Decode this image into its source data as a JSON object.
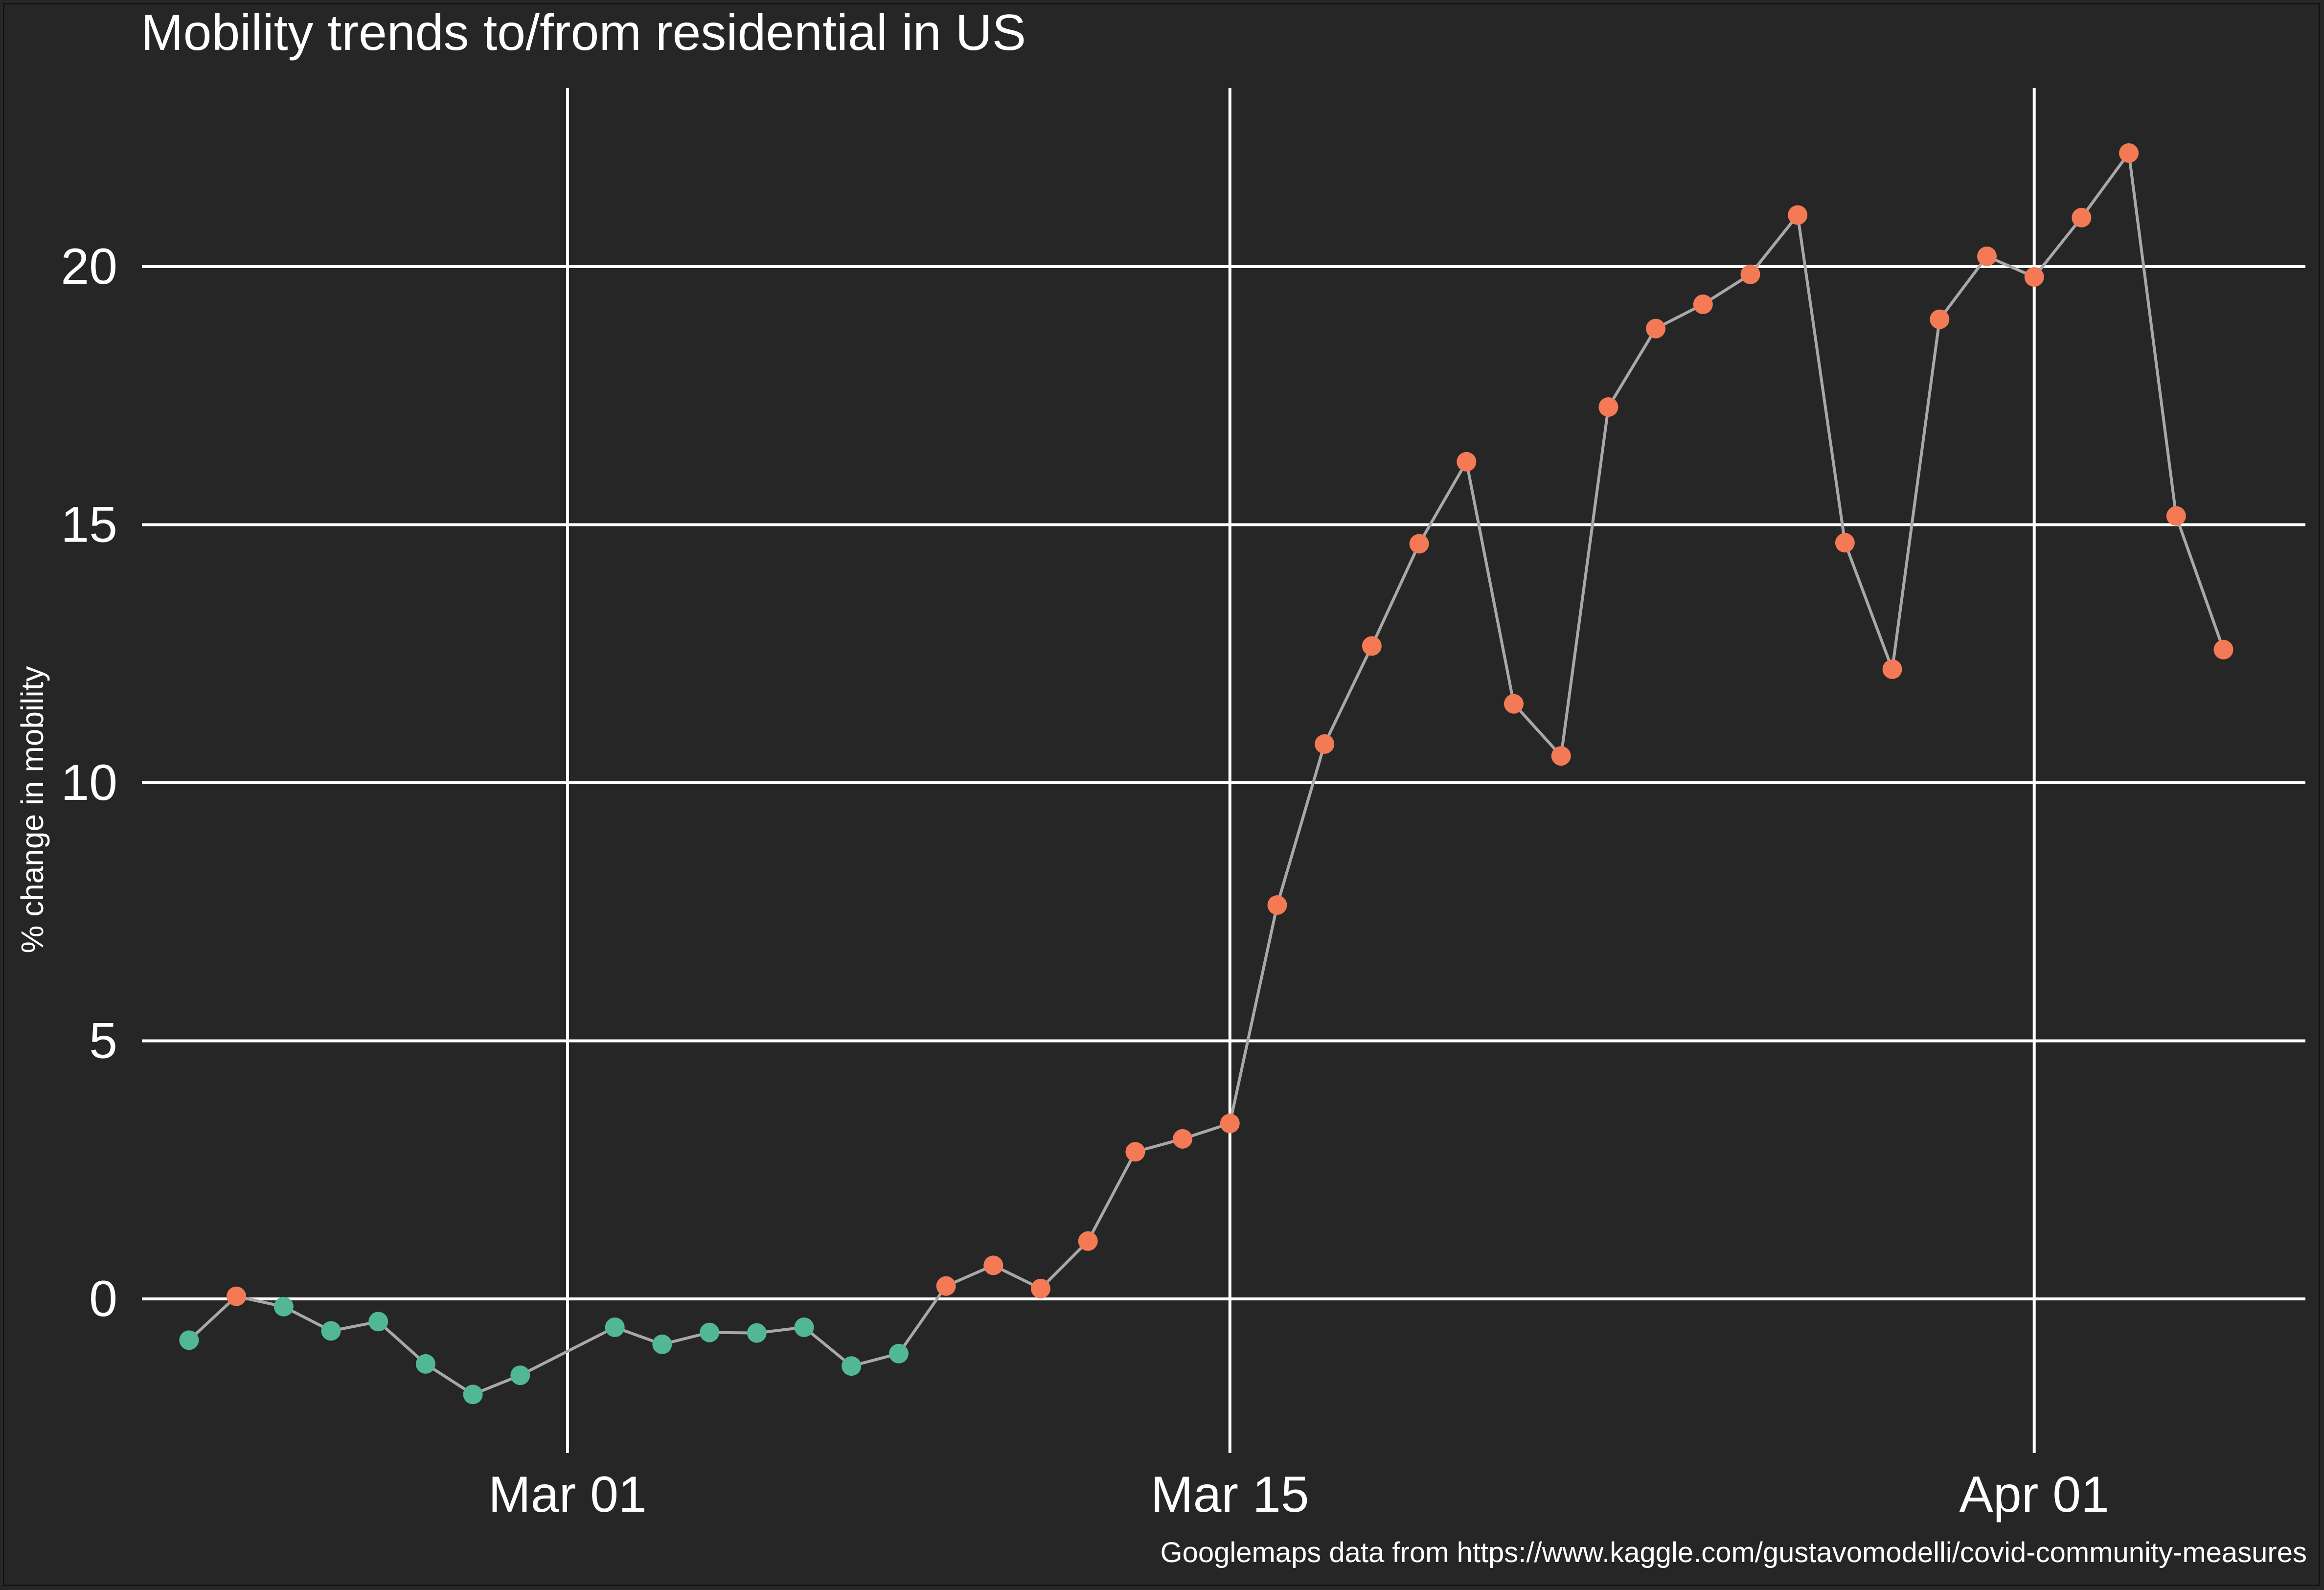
{
  "chart_data": {
    "type": "line",
    "title": "Mobility trends to/from residential in US",
    "ylabel": "% change in mobility",
    "xlabel": "",
    "caption": "Googlemaps data from https://www.kaggle.com/gustavomodelli/covid-community-measures",
    "x_ticks": [
      {
        "date": "2020-03-01",
        "label": "Mar 01"
      },
      {
        "date": "2020-03-15",
        "label": "Mar 15"
      },
      {
        "date": "2020-04-01",
        "label": "Apr 01"
      }
    ],
    "y_ticks": [
      0,
      5,
      10,
      15,
      20
    ],
    "xlim": [
      "2020-02-20",
      "2020-04-06"
    ],
    "ylim": [
      -3,
      24
    ],
    "grid": true,
    "colors": {
      "background": "#262626",
      "gridline": "#ffffff",
      "line": "#a8a8a8",
      "point_decrease": "#52b795",
      "point_increase": "#f47a55",
      "text": "#ffffff"
    },
    "points": [
      {
        "date": "2020-02-22",
        "value": -0.8,
        "group": "decrease"
      },
      {
        "date": "2020-02-23",
        "value": 0.05,
        "group": "increase"
      },
      {
        "date": "2020-02-24",
        "value": -0.15,
        "group": "decrease"
      },
      {
        "date": "2020-02-25",
        "value": -0.62,
        "group": "decrease"
      },
      {
        "date": "2020-02-26",
        "value": -0.44,
        "group": "decrease"
      },
      {
        "date": "2020-02-27",
        "value": -1.26,
        "group": "decrease"
      },
      {
        "date": "2020-02-28",
        "value": -1.85,
        "group": "decrease"
      },
      {
        "date": "2020-02-29",
        "value": -1.48,
        "group": "decrease"
      },
      {
        "date": "2020-03-02",
        "value": -0.55,
        "group": "decrease"
      },
      {
        "date": "2020-03-03",
        "value": -0.88,
        "group": "decrease"
      },
      {
        "date": "2020-03-04",
        "value": -0.65,
        "group": "decrease"
      },
      {
        "date": "2020-03-05",
        "value": -0.66,
        "group": "decrease"
      },
      {
        "date": "2020-03-06",
        "value": -0.55,
        "group": "decrease"
      },
      {
        "date": "2020-03-07",
        "value": -1.3,
        "group": "decrease"
      },
      {
        "date": "2020-03-08",
        "value": -1.06,
        "group": "decrease"
      },
      {
        "date": "2020-03-09",
        "value": 0.25,
        "group": "increase"
      },
      {
        "date": "2020-03-10",
        "value": 0.65,
        "group": "increase"
      },
      {
        "date": "2020-03-11",
        "value": 0.2,
        "group": "increase"
      },
      {
        "date": "2020-03-12",
        "value": 1.12,
        "group": "increase"
      },
      {
        "date": "2020-03-13",
        "value": 2.85,
        "group": "increase"
      },
      {
        "date": "2020-03-14",
        "value": 3.1,
        "group": "increase"
      },
      {
        "date": "2020-03-15",
        "value": 3.4,
        "group": "increase"
      },
      {
        "date": "2020-03-16",
        "value": 7.63,
        "group": "increase"
      },
      {
        "date": "2020-03-17",
        "value": 10.75,
        "group": "increase"
      },
      {
        "date": "2020-03-18",
        "value": 12.65,
        "group": "increase"
      },
      {
        "date": "2020-03-19",
        "value": 14.63,
        "group": "increase"
      },
      {
        "date": "2020-03-20",
        "value": 16.22,
        "group": "increase"
      },
      {
        "date": "2020-03-21",
        "value": 11.53,
        "group": "increase"
      },
      {
        "date": "2020-03-22",
        "value": 10.52,
        "group": "increase"
      },
      {
        "date": "2020-03-23",
        "value": 17.28,
        "group": "increase"
      },
      {
        "date": "2020-03-24",
        "value": 18.8,
        "group": "increase"
      },
      {
        "date": "2020-03-25",
        "value": 19.27,
        "group": "increase"
      },
      {
        "date": "2020-03-26",
        "value": 19.85,
        "group": "increase"
      },
      {
        "date": "2020-03-27",
        "value": 21.0,
        "group": "increase"
      },
      {
        "date": "2020-03-28",
        "value": 14.65,
        "group": "increase"
      },
      {
        "date": "2020-03-29",
        "value": 12.2,
        "group": "increase"
      },
      {
        "date": "2020-03-30",
        "value": 18.98,
        "group": "increase"
      },
      {
        "date": "2020-03-31",
        "value": 20.2,
        "group": "increase"
      },
      {
        "date": "2020-04-01",
        "value": 19.8,
        "group": "increase"
      },
      {
        "date": "2020-04-02",
        "value": 20.95,
        "group": "increase"
      },
      {
        "date": "2020-04-03",
        "value": 22.2,
        "group": "increase"
      },
      {
        "date": "2020-04-04",
        "value": 15.17,
        "group": "increase"
      },
      {
        "date": "2020-04-05",
        "value": 12.58,
        "group": "increase"
      }
    ]
  }
}
